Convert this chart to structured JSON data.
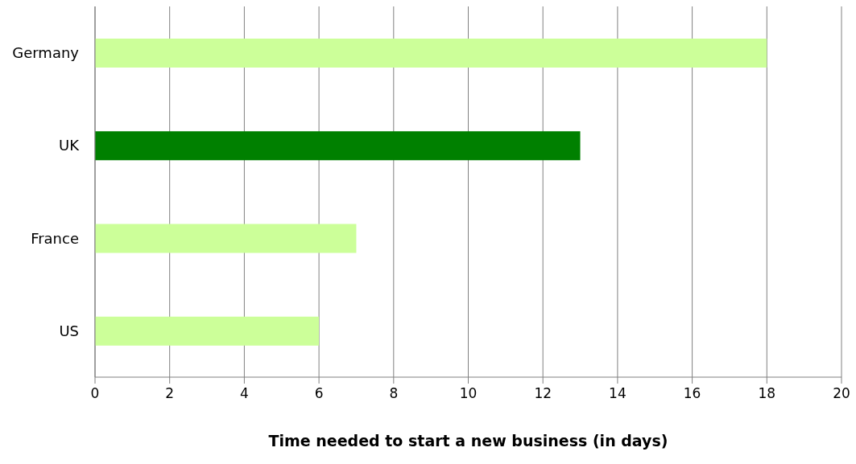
{
  "chart_data": {
    "type": "bar",
    "orientation": "horizontal",
    "xlabel": "Time needed to start a new business (in days)",
    "categories": [
      "Germany",
      "UK",
      "France",
      "US"
    ],
    "values": [
      18,
      13,
      7,
      6
    ],
    "colors": [
      "#ccff99",
      "#008000",
      "#ccff99",
      "#ccff99"
    ],
    "xlim": [
      0,
      20
    ],
    "xticks": [
      0,
      2,
      4,
      6,
      8,
      10,
      12,
      14,
      16,
      18,
      20
    ],
    "grid": "x"
  }
}
